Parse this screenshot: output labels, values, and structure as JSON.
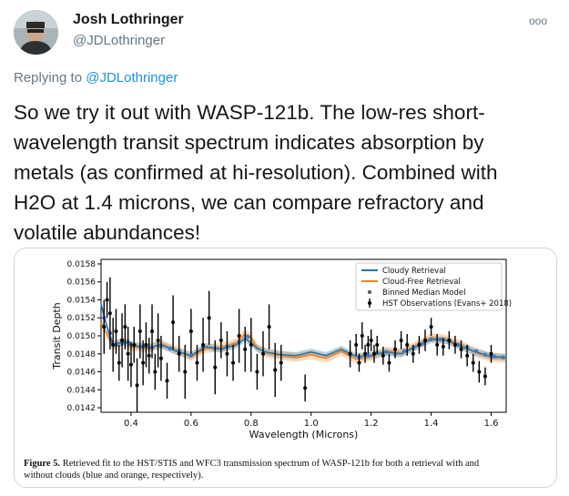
{
  "tweet": {
    "author_name": "Josh Lothringer",
    "author_handle": "@JDLothringer",
    "more_icon": "ooo",
    "reply_prefix": "Replying to ",
    "reply_to": "@JDLothringer",
    "text": "So we try it out with WASP-121b. The low-res short-wavelength transit spectrum indicates absorption by metals (as confirmed at hi-resolution). Combined with H2O at 1.4 microns, we can compare refractory and volatile abundances!",
    "text_lines": [
      "So we try it out with WASP-121b. The low-res short-",
      "wavelength transit spectrum indicates absorption by",
      "metals (as confirmed at hi-resolution). Combined with",
      "H2O at 1.4 microns, we can compare refractory and",
      "volatile abundances!"
    ]
  },
  "figure": {
    "caption_label": "Figure 5.",
    "caption_line1": "Retrieved fit to the HST/STIS and WFC3 transmission spectrum of WASP-121b for both a retrieval with and",
    "caption_line2": "without clouds (blue and orange, respectively)."
  },
  "colors": {
    "cloudy": "#1f77b4",
    "cloudfree": "#ff7f0e",
    "binned": "#3a7dc9",
    "obs": "#000000",
    "link": "#1b95e0"
  },
  "chart_data": {
    "type": "scatter",
    "xlabel": "Wavelength (Microns)",
    "ylabel": "Transit Depth",
    "xlim": [
      0.3,
      1.65
    ],
    "ylim": [
      0.01415,
      0.01585
    ],
    "x_ticks": [
      0.4,
      0.6,
      0.8,
      1.0,
      1.2,
      1.4,
      1.6
    ],
    "x_tick_labels": [
      "0.4",
      "0.6",
      "0.8",
      "1.0",
      "1.2",
      "1.4",
      "1.6"
    ],
    "y_ticks": [
      0.0142,
      0.0144,
      0.0146,
      0.0148,
      0.015,
      0.0152,
      0.0154,
      0.0156,
      0.0158
    ],
    "y_tick_labels": [
      "0.0142",
      "0.0144",
      "0.0146",
      "0.0148",
      "0.0150",
      "0.0152",
      "0.0154",
      "0.0156",
      "0.0158"
    ],
    "legend_position": "top-right",
    "legend": [
      "Cloudy Retrieval",
      "Cloud-Free Retrieval",
      "Binned Median Model",
      "HST Observations (Evans+ 2018)"
    ],
    "series": [
      {
        "name": "Cloudy Retrieval",
        "x": [
          0.3,
          0.32,
          0.34,
          0.36,
          0.38,
          0.4,
          0.43,
          0.46,
          0.5,
          0.55,
          0.6,
          0.65,
          0.7,
          0.75,
          0.78,
          0.8,
          0.82,
          0.85,
          0.9,
          0.95,
          1.0,
          1.05,
          1.1,
          1.15,
          1.2,
          1.25,
          1.3,
          1.35,
          1.4,
          1.45,
          1.5,
          1.55,
          1.6,
          1.65
        ],
        "y": [
          0.01535,
          0.0151,
          0.0149,
          0.01492,
          0.01493,
          0.0149,
          0.01488,
          0.01487,
          0.0149,
          0.01483,
          0.01478,
          0.01488,
          0.01485,
          0.0149,
          0.01497,
          0.01492,
          0.01486,
          0.01482,
          0.01479,
          0.01478,
          0.01482,
          0.01478,
          0.01485,
          0.01477,
          0.01478,
          0.01482,
          0.0148,
          0.01488,
          0.01496,
          0.01495,
          0.01488,
          0.01482,
          0.01477,
          0.01476
        ]
      },
      {
        "name": "Cloud-Free Retrieval",
        "x": [
          0.3,
          0.32,
          0.34,
          0.36,
          0.38,
          0.4,
          0.43,
          0.46,
          0.5,
          0.55,
          0.6,
          0.65,
          0.7,
          0.75,
          0.78,
          0.8,
          0.82,
          0.85,
          0.9,
          0.95,
          1.0,
          1.05,
          1.1,
          1.15,
          1.2,
          1.25,
          1.3,
          1.35,
          1.4,
          1.45,
          1.5,
          1.55,
          1.6,
          1.65
        ],
        "y": [
          0.01515,
          0.01502,
          0.01488,
          0.01492,
          0.01494,
          0.01488,
          0.01487,
          0.01486,
          0.01491,
          0.01484,
          0.01477,
          0.01486,
          0.01487,
          0.01492,
          0.01502,
          0.01498,
          0.01487,
          0.01481,
          0.01478,
          0.01476,
          0.01479,
          0.01475,
          0.01483,
          0.01474,
          0.01477,
          0.01483,
          0.01481,
          0.01489,
          0.01498,
          0.01496,
          0.0149,
          0.01481,
          0.01476,
          0.01475
        ]
      },
      {
        "name": "Binned Median Model",
        "x": [
          0.31,
          0.33,
          0.35,
          0.37,
          0.39,
          0.41,
          0.44,
          0.47,
          0.5,
          0.53,
          0.56,
          0.6,
          0.64,
          0.68,
          0.72,
          0.76,
          0.79,
          1.13,
          1.16,
          1.19,
          1.22,
          1.25,
          1.28,
          1.31,
          1.34,
          1.37,
          1.4,
          1.43,
          1.46,
          1.49,
          1.52,
          1.55,
          1.58,
          1.61,
          1.64
        ],
        "y": [
          0.0152,
          0.01503,
          0.0149,
          0.01492,
          0.01493,
          0.0149,
          0.01488,
          0.01487,
          0.01489,
          0.01486,
          0.01483,
          0.01478,
          0.01488,
          0.01486,
          0.01488,
          0.01493,
          0.01499,
          0.01479,
          0.01476,
          0.01478,
          0.01481,
          0.01482,
          0.0148,
          0.01483,
          0.01486,
          0.01491,
          0.01496,
          0.01496,
          0.01494,
          0.0149,
          0.01487,
          0.01483,
          0.01479,
          0.01477,
          0.01476
        ]
      },
      {
        "name": "HST Observations (Evans+ 2018)",
        "x": [
          0.31,
          0.32,
          0.33,
          0.34,
          0.35,
          0.36,
          0.37,
          0.38,
          0.39,
          0.4,
          0.41,
          0.42,
          0.43,
          0.44,
          0.45,
          0.46,
          0.47,
          0.48,
          0.49,
          0.5,
          0.52,
          0.54,
          0.56,
          0.58,
          0.6,
          0.62,
          0.64,
          0.66,
          0.68,
          0.7,
          0.72,
          0.74,
          0.76,
          0.78,
          0.8,
          0.82,
          0.84,
          0.86,
          0.88,
          0.9,
          0.98,
          1.13,
          1.15,
          1.16,
          1.17,
          1.18,
          1.19,
          1.2,
          1.21,
          1.22,
          1.24,
          1.26,
          1.28,
          1.3,
          1.32,
          1.34,
          1.36,
          1.38,
          1.4,
          1.42,
          1.44,
          1.46,
          1.48,
          1.5,
          1.52,
          1.54,
          1.56,
          1.58,
          1.6
        ],
        "y": [
          0.0151,
          0.0154,
          0.01525,
          0.0149,
          0.01505,
          0.0147,
          0.01495,
          0.0151,
          0.0148,
          0.01468,
          0.0149,
          0.01445,
          0.01505,
          0.0147,
          0.0149,
          0.01478,
          0.01505,
          0.0146,
          0.01495,
          0.01475,
          0.0145,
          0.01515,
          0.0148,
          0.0146,
          0.01505,
          0.0147,
          0.0149,
          0.0152,
          0.01465,
          0.01495,
          0.0148,
          0.0147,
          0.015,
          0.01485,
          0.0149,
          0.0146,
          0.0148,
          0.0151,
          0.01462,
          0.0147,
          0.01442,
          0.0148,
          0.0149,
          0.0147,
          0.015,
          0.0148,
          0.0149,
          0.01495,
          0.0148,
          0.0149,
          0.01478,
          0.0147,
          0.01485,
          0.01495,
          0.0149,
          0.0148,
          0.0149,
          0.01495,
          0.0151,
          0.0149,
          0.01488,
          0.01495,
          0.0149,
          0.01485,
          0.01478,
          0.0147,
          0.0146,
          0.01455,
          0.0148
        ],
        "err": [
          0.0003,
          0.0002,
          0.0004,
          0.0003,
          0.00025,
          0.0002,
          0.0003,
          0.00025,
          0.0003,
          0.00025,
          0.0002,
          0.0003,
          0.0003,
          0.00025,
          0.00025,
          0.0002,
          0.0003,
          0.0002,
          0.0003,
          0.00025,
          0.0002,
          0.0003,
          0.0002,
          0.0003,
          0.00025,
          0.0002,
          0.0003,
          0.0003,
          0.0003,
          0.0002,
          0.00025,
          0.0002,
          0.0003,
          0.00025,
          0.0003,
          0.0002,
          0.00025,
          0.00025,
          0.0003,
          0.0002,
          0.00015,
          0.00015,
          0.00012,
          0.0001,
          0.00015,
          0.0001,
          0.0001,
          0.00012,
          0.0001,
          0.0001,
          0.0001,
          0.0001,
          0.0001,
          0.0001,
          0.00012,
          0.0001,
          0.0001,
          0.00012,
          0.0001,
          0.00012,
          0.0001,
          0.0001,
          0.0001,
          0.0001,
          0.00012,
          0.0001,
          0.00012,
          0.0001,
          0.0001
        ]
      }
    ]
  }
}
